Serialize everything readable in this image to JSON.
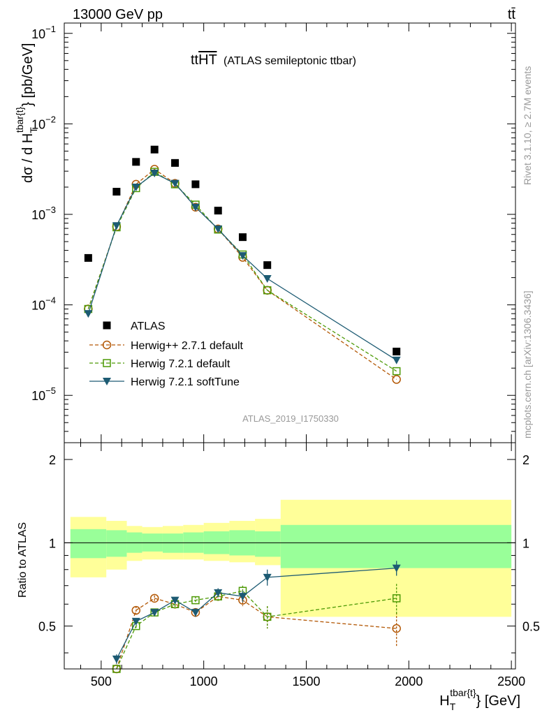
{
  "header": {
    "energy_label": "13000 GeV pp",
    "process_label": "tt̄",
    "plot_title_main": "tt",
    "plot_title_overline": "HT",
    "plot_title_paren": "(ATLAS semileptonic ttbar)",
    "analysis_id": "ATLAS_2019_I1750330",
    "rivet_label": "Rivet 3.1.10, ≥ 2.7M events",
    "mcplots_label": "mcplots.cern.ch [arXiv:1306.3436]"
  },
  "legend": {
    "entries": [
      "ATLAS",
      "Herwig++ 2.7.1 default",
      "Herwig 7.2.1 default",
      "Herwig 7.2.1 softTune"
    ]
  },
  "colors": {
    "data": "#000000",
    "herwigpp": "#b35806",
    "herwig721": "#4d9a06",
    "softtune": "#1d5b73",
    "band_outer": "#ffff99",
    "band_inner": "#99ff99",
    "axis": "#000000",
    "watermark": "#999999"
  },
  "chart_data": [
    {
      "type": "scatter",
      "panel": "main",
      "ylabel": "dσ / d H_T^{tbar{t}} [pb/GeV]",
      "xlim": [
        320,
        2520
      ],
      "ylim": [
        3e-06,
        0.13
      ],
      "yscale": "log",
      "y_tick_labels": [
        "10^-5",
        "10^-4",
        "10^-3",
        "10^-2",
        "10^-1"
      ],
      "x": [
        437,
        575,
        670,
        760,
        860,
        960,
        1070,
        1190,
        1310,
        1940
      ],
      "series": [
        {
          "name": "ATLAS",
          "marker": "square",
          "values": [
            0.00033,
            0.00178,
            0.0038,
            0.0052,
            0.0037,
            0.00215,
            0.0011,
            0.00056,
            0.000275,
            3.05e-05
          ]
        },
        {
          "name": "Herwig++ 2.7.1 default",
          "marker": "circle",
          "values": [
            9e-05,
            0.00073,
            0.00215,
            0.00315,
            0.0022,
            0.0012,
            0.00069,
            0.000335,
            0.000145,
            1.5e-05
          ]
        },
        {
          "name": "Herwig 7.2.1 default",
          "marker": "open-square",
          "values": [
            9e-05,
            0.00072,
            0.00195,
            0.00295,
            0.00215,
            0.00128,
            0.00068,
            0.00036,
            0.000145,
            1.85e-05
          ]
        },
        {
          "name": "Herwig 7.2.1 softTune",
          "marker": "triangle-down",
          "values": [
            8e-05,
            0.00075,
            0.002,
            0.00285,
            0.0022,
            0.0012,
            0.00069,
            0.00035,
            0.000195,
            2.45e-05
          ]
        }
      ]
    },
    {
      "type": "scatter",
      "panel": "ratio",
      "ylabel": "Ratio to ATLAS",
      "xlabel": "H_T^{tbar{t}} [GeV]",
      "xlim": [
        320,
        2520
      ],
      "ylim": [
        0.35,
        2.3
      ],
      "x_ticks": [
        500,
        1000,
        1500,
        2000,
        2500
      ],
      "y_ticks": [
        0.5,
        1,
        2
      ],
      "band_edges": [
        350,
        525,
        625,
        700,
        800,
        900,
        1000,
        1125,
        1250,
        1375,
        2500
      ],
      "band_outer": {
        "lo": [
          0.75,
          0.8,
          0.86,
          0.87,
          0.87,
          0.87,
          0.86,
          0.85,
          0.83,
          0.54
        ],
        "hi": [
          1.24,
          1.2,
          1.15,
          1.14,
          1.15,
          1.16,
          1.18,
          1.2,
          1.22,
          1.43
        ]
      },
      "band_inner": {
        "lo": [
          0.88,
          0.89,
          0.92,
          0.93,
          0.92,
          0.92,
          0.91,
          0.9,
          0.89,
          0.81
        ],
        "hi": [
          1.12,
          1.11,
          1.09,
          1.08,
          1.08,
          1.09,
          1.1,
          1.11,
          1.1,
          1.16
        ]
      },
      "x": [
        437,
        575,
        670,
        760,
        860,
        960,
        1070,
        1190,
        1310,
        1940
      ],
      "series": [
        {
          "name": "Herwig++ 2.7.1 default",
          "marker": "circle",
          "values": [
            null,
            0.35,
            0.57,
            0.63,
            0.6,
            0.56,
            0.64,
            0.62,
            0.54,
            0.49
          ],
          "errors": [
            null,
            0.01,
            0.02,
            0.015,
            0.015,
            0.02,
            0.025,
            0.03,
            0.05,
            0.07
          ]
        },
        {
          "name": "Herwig 7.2.1 default",
          "marker": "open-square",
          "values": [
            null,
            0.35,
            0.5,
            0.56,
            0.6,
            0.62,
            0.64,
            0.67,
            0.54,
            0.63
          ],
          "errors": [
            null,
            0.01,
            0.015,
            0.015,
            0.015,
            0.02,
            0.025,
            0.03,
            0.05,
            0.08
          ]
        },
        {
          "name": "Herwig 7.2.1 softTune",
          "marker": "triangle-down",
          "values": [
            null,
            0.38,
            0.52,
            0.56,
            0.62,
            0.56,
            0.66,
            0.64,
            0.75,
            0.81
          ],
          "errors": [
            null,
            0.015,
            0.015,
            0.015,
            0.015,
            0.02,
            0.025,
            0.03,
            0.05,
            0.05
          ]
        }
      ]
    }
  ]
}
